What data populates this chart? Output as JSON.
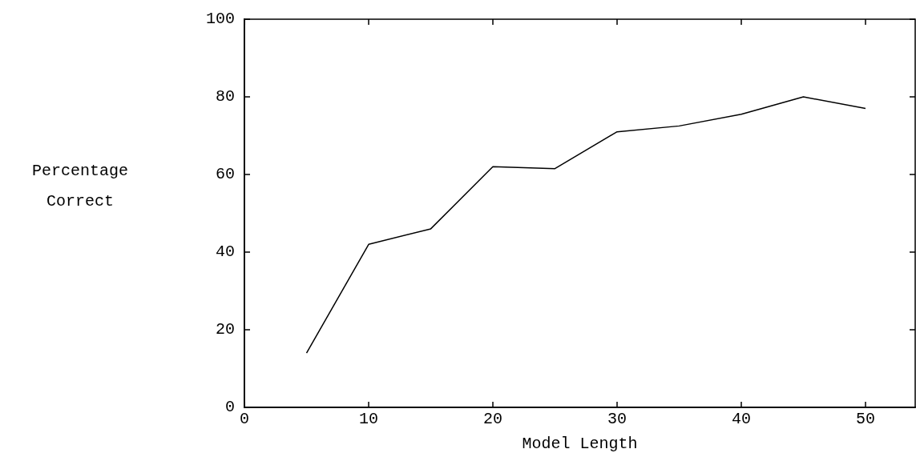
{
  "chart_data": {
    "type": "line",
    "xlabel": "Model Length",
    "ylabel": "Percentage Correct",
    "series": [
      {
        "color": "#000000",
        "x": [
          5,
          10,
          15,
          20,
          25,
          30,
          35,
          40,
          45,
          50
        ],
        "values": [
          14,
          42,
          46,
          62,
          61.5,
          71,
          72.5,
          75.5,
          80,
          77
        ]
      }
    ],
    "xlim": [
      0,
      54
    ],
    "xticks": [
      0,
      10,
      20,
      30,
      40,
      50
    ],
    "ylim": [
      0,
      100
    ],
    "yticks": [
      0,
      20,
      40,
      60,
      80,
      100
    ],
    "grid": false,
    "legend": false,
    "marker": "none",
    "line_style": "solid"
  }
}
